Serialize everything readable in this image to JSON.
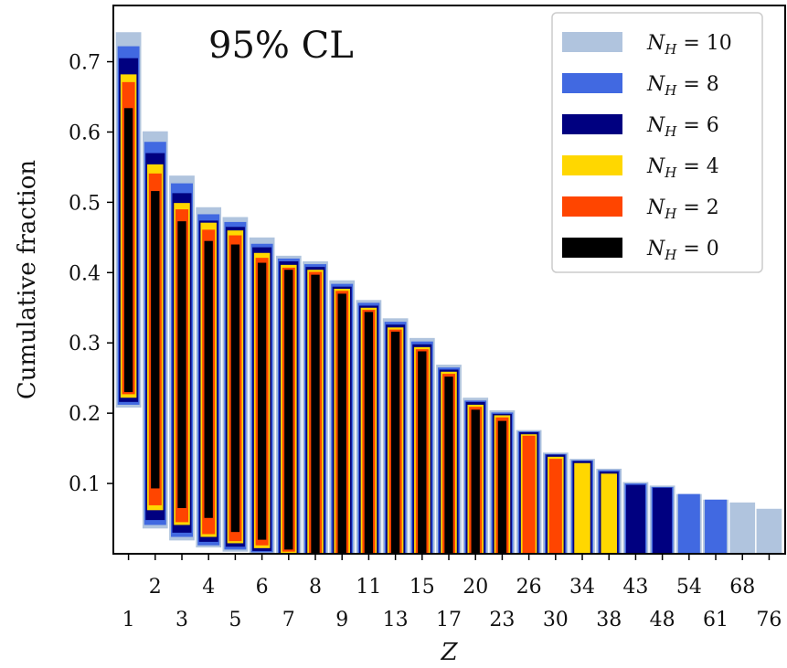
{
  "chart_data": {
    "type": "bar",
    "annotation": "95% CL",
    "xlabel": "Z",
    "ylabel": "Cumulative fraction",
    "ylim": [
      0,
      0.78
    ],
    "yticks": [
      "0.1",
      "0.2",
      "0.3",
      "0.4",
      "0.5",
      "0.6",
      "0.7"
    ],
    "ytick_values": [
      0.1,
      0.2,
      0.3,
      0.4,
      0.5,
      0.6,
      0.7
    ],
    "categories": [
      "1",
      "2",
      "3",
      "4",
      "5",
      "6",
      "7",
      "8",
      "9",
      "11",
      "13",
      "15",
      "17",
      "20",
      "23",
      "26",
      "30",
      "34",
      "38",
      "43",
      "48",
      "54",
      "61",
      "68",
      "76"
    ],
    "legend": [
      {
        "label": "N_H = 10",
        "sub": "H",
        "value": "10",
        "color": "#b0c4de"
      },
      {
        "label": "N_H = 8",
        "sub": "H",
        "value": "8",
        "color": "#4169e1"
      },
      {
        "label": "N_H = 6",
        "sub": "H",
        "value": "6",
        "color": "#000080"
      },
      {
        "label": "N_H = 4",
        "sub": "H",
        "value": "4",
        "color": "#ffd700"
      },
      {
        "label": "N_H = 2",
        "sub": "H",
        "value": "2",
        "color": "#ff4500"
      },
      {
        "label": "N_H = 0",
        "sub": "H",
        "value": "0",
        "color": "#000000"
      }
    ],
    "series": [
      {
        "name": "N_H = 10",
        "color": "#b0c4de",
        "ranges": [
          [
            0.208,
            0.742
          ],
          [
            0.036,
            0.601
          ],
          [
            0.019,
            0.538
          ],
          [
            0.009,
            0.493
          ],
          [
            0.003,
            0.479
          ],
          [
            0,
            0.45
          ],
          [
            0,
            0.424
          ],
          [
            0,
            0.416
          ],
          [
            0,
            0.389
          ],
          [
            0,
            0.361
          ],
          [
            0,
            0.335
          ],
          [
            0,
            0.307
          ],
          [
            0,
            0.269
          ],
          [
            0,
            0.222
          ],
          [
            0,
            0.204
          ],
          [
            0,
            0.176
          ],
          [
            0,
            0.144
          ],
          [
            0,
            0.135
          ],
          [
            0,
            0.121
          ],
          [
            0,
            0.102
          ],
          [
            0,
            0.097
          ],
          [
            0,
            0.085
          ],
          [
            0,
            0.077
          ],
          [
            0,
            0.073
          ],
          [
            0,
            0.064
          ]
        ]
      },
      {
        "name": "N_H = 8",
        "color": "#4169e1",
        "ranges": [
          [
            0.212,
            0.722
          ],
          [
            0.041,
            0.586
          ],
          [
            0.024,
            0.527
          ],
          [
            0.012,
            0.483
          ],
          [
            0.006,
            0.472
          ],
          [
            0.002,
            0.441
          ],
          [
            0,
            0.42
          ],
          [
            0,
            0.412
          ],
          [
            0,
            0.384
          ],
          [
            0,
            0.357
          ],
          [
            0,
            0.33
          ],
          [
            0,
            0.302
          ],
          [
            0,
            0.265
          ],
          [
            0,
            0.218
          ],
          [
            0,
            0.201
          ],
          [
            0,
            0.174
          ],
          [
            0,
            0.142
          ],
          [
            0,
            0.133
          ],
          [
            0,
            0.119
          ],
          [
            0,
            0.1
          ],
          [
            0,
            0.095
          ],
          [
            0,
            0.085
          ],
          [
            0,
            0.077
          ],
          null,
          null
        ]
      },
      {
        "name": "N_H = 6",
        "color": "#000080",
        "ranges": [
          [
            0.216,
            0.705
          ],
          [
            0.048,
            0.57
          ],
          [
            0.03,
            0.513
          ],
          [
            0.017,
            0.474
          ],
          [
            0.01,
            0.465
          ],
          [
            0.004,
            0.436
          ],
          [
            0,
            0.416
          ],
          [
            0,
            0.408
          ],
          [
            0,
            0.38
          ],
          [
            0,
            0.353
          ],
          [
            0,
            0.326
          ],
          [
            0,
            0.298
          ],
          [
            0,
            0.262
          ],
          [
            0,
            0.216
          ],
          [
            0,
            0.199
          ],
          [
            0,
            0.173
          ],
          [
            0,
            0.141
          ],
          [
            0,
            0.132
          ],
          [
            0,
            0.117
          ],
          [
            0,
            0.098
          ],
          [
            0,
            0.094
          ],
          null,
          null,
          null,
          null
        ]
      },
      {
        "name": "N_H = 4",
        "color": "#ffd700",
        "ranges": [
          [
            0.222,
            0.682
          ],
          [
            0.062,
            0.554
          ],
          [
            0.041,
            0.499
          ],
          [
            0.024,
            0.471
          ],
          [
            0.015,
            0.46
          ],
          [
            0.008,
            0.428
          ],
          [
            0.001,
            0.411
          ],
          [
            0,
            0.404
          ],
          [
            0,
            0.377
          ],
          [
            0,
            0.35
          ],
          [
            0,
            0.322
          ],
          [
            0,
            0.294
          ],
          [
            0,
            0.259
          ],
          [
            0,
            0.212
          ],
          [
            0,
            0.197
          ],
          [
            0,
            0.17
          ],
          [
            0,
            0.138
          ],
          [
            0,
            0.129
          ],
          [
            0,
            0.114
          ],
          null,
          null,
          null,
          null,
          null,
          null
        ]
      },
      {
        "name": "N_H = 2",
        "color": "#ff4500",
        "ranges": [
          [
            0.227,
            0.671
          ],
          [
            0.069,
            0.541
          ],
          [
            0.045,
            0.49
          ],
          [
            0.028,
            0.461
          ],
          [
            0.018,
            0.453
          ],
          [
            0.012,
            0.421
          ],
          [
            0.003,
            0.407
          ],
          [
            0,
            0.401
          ],
          [
            0,
            0.374
          ],
          [
            0,
            0.347
          ],
          [
            0,
            0.319
          ],
          [
            0,
            0.291
          ],
          [
            0,
            0.256
          ],
          [
            0,
            0.209
          ],
          [
            0,
            0.194
          ],
          [
            0,
            0.168
          ],
          [
            0,
            0.135
          ],
          null,
          null,
          null,
          null,
          null,
          null,
          null,
          null
        ]
      },
      {
        "name": "N_H = 0",
        "color": "#000000",
        "ranges": [
          [
            0.23,
            0.634
          ],
          [
            0.093,
            0.516
          ],
          [
            0.065,
            0.473
          ],
          [
            0.051,
            0.445
          ],
          [
            0.031,
            0.44
          ],
          [
            0.02,
            0.414
          ],
          [
            0.006,
            0.404
          ],
          [
            0.001,
            0.397
          ],
          [
            0,
            0.37
          ],
          [
            0,
            0.344
          ],
          [
            0,
            0.316
          ],
          [
            0,
            0.288
          ],
          [
            0,
            0.252
          ],
          [
            0,
            0.205
          ],
          [
            0,
            0.189
          ],
          null,
          null,
          null,
          null,
          null,
          null,
          null,
          null,
          null,
          null
        ]
      }
    ]
  }
}
